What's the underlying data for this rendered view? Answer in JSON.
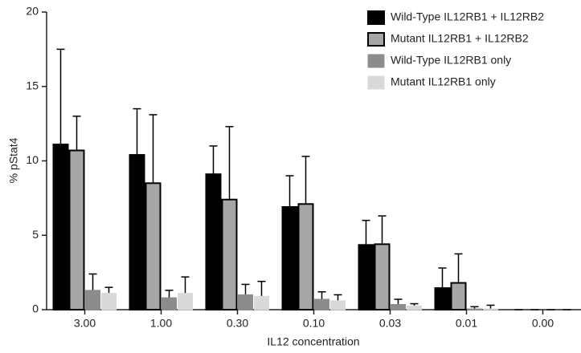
{
  "chart_data": {
    "type": "bar",
    "x_label": "IL12 concentration",
    "y_label": "% pStat4",
    "categories": [
      "3.00",
      "1.00",
      "0.30",
      "0.10",
      "0.03",
      "0.01",
      "0.00"
    ],
    "ylim": [
      0,
      20
    ],
    "yticks": [
      0,
      5,
      10,
      15,
      20
    ],
    "series": [
      {
        "name": "Wild-Type IL12RB1 + IL12RB2",
        "color": "#000000",
        "stroke": "#000000",
        "values": [
          11.1,
          10.4,
          9.1,
          6.9,
          4.35,
          1.45,
          0
        ],
        "errors": [
          6.4,
          3.1,
          1.9,
          2.1,
          1.65,
          1.35,
          0
        ]
      },
      {
        "name": "Mutant IL12RB1 + IL12RB2",
        "color": "#a6a6a6",
        "stroke": "#000000",
        "values": [
          10.7,
          8.5,
          7.4,
          7.1,
          4.4,
          1.8,
          0
        ],
        "errors": [
          2.3,
          4.6,
          4.9,
          3.2,
          1.9,
          1.95,
          0
        ]
      },
      {
        "name": "Wild-Type IL12RB1 only",
        "color": "#8c8c8c",
        "stroke": "#8c8c8c",
        "values": [
          1.3,
          0.8,
          1.0,
          0.7,
          0.35,
          0.05,
          0
        ],
        "errors": [
          1.1,
          0.5,
          0.7,
          0.5,
          0.35,
          0.15,
          0
        ]
      },
      {
        "name": "Mutant IL12RB1 only",
        "color": "#d9d9d9",
        "stroke": "#d9d9d9",
        "values": [
          1.1,
          1.1,
          0.9,
          0.6,
          0.25,
          0.05,
          0
        ],
        "errors": [
          0.4,
          1.1,
          1.0,
          0.4,
          0.15,
          0.25,
          0
        ]
      }
    ]
  }
}
